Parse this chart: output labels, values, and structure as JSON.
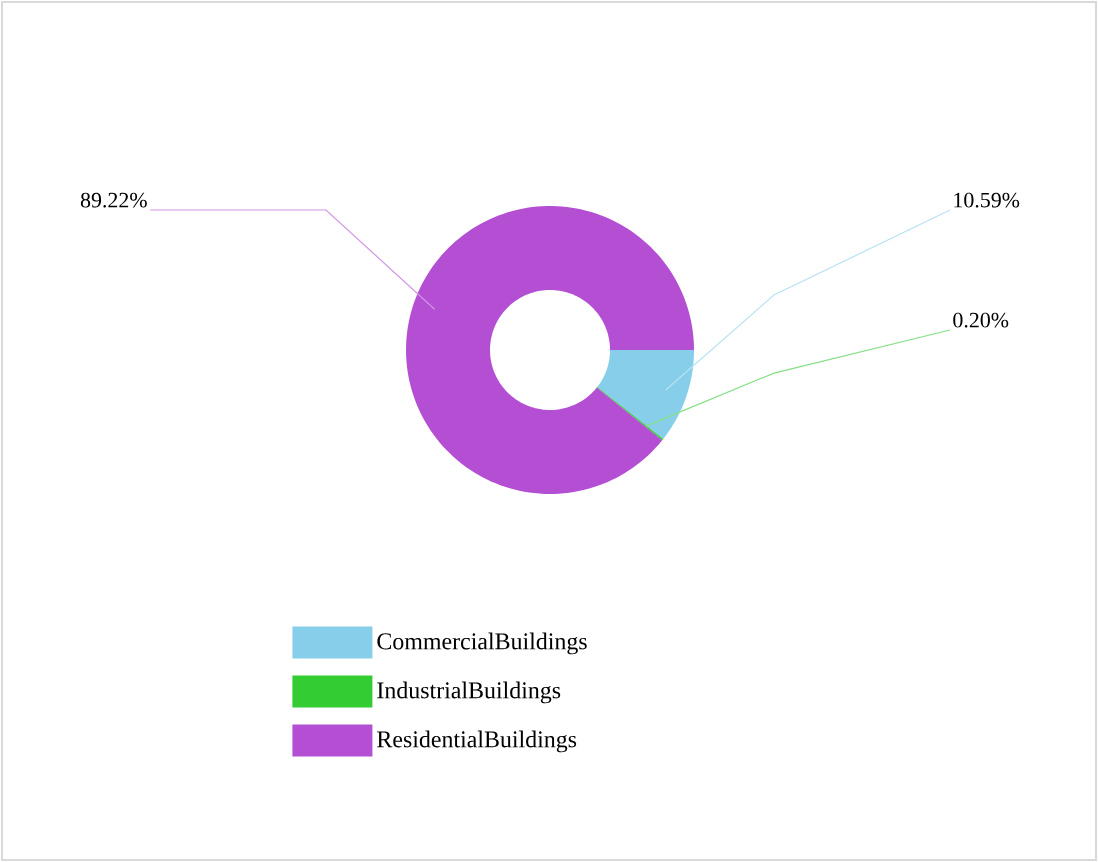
{
  "chart_data": {
    "type": "donut",
    "categories": [
      "CommercialBuildings",
      "IndustrialBuildings",
      "ResidentialBuildings"
    ],
    "values": [
      10.59,
      0.2,
      89.22
    ],
    "colors": [
      "#87ceeb",
      "#33cc33",
      "#b44fd4"
    ],
    "value_labels": [
      "10.59%",
      "0.20%",
      "89.22%"
    ],
    "legend": "bottom"
  }
}
